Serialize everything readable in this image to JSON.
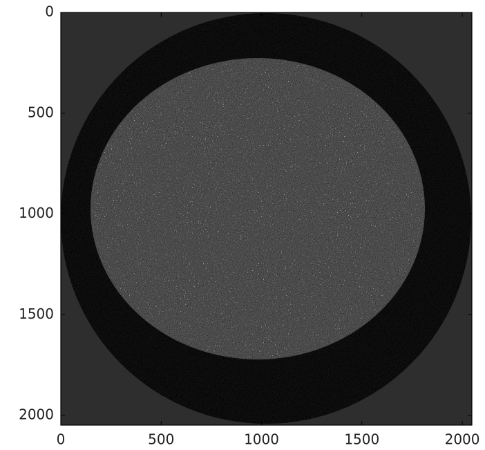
{
  "chart_data": {
    "type": "image",
    "xlim": [
      0,
      2048
    ],
    "ylim": [
      0,
      2048
    ],
    "y_inverted": true,
    "xticks": [
      0,
      500,
      1000,
      1500,
      2000
    ],
    "yticks": [
      0,
      500,
      1000,
      1500,
      2000
    ],
    "grid": false
  }
}
